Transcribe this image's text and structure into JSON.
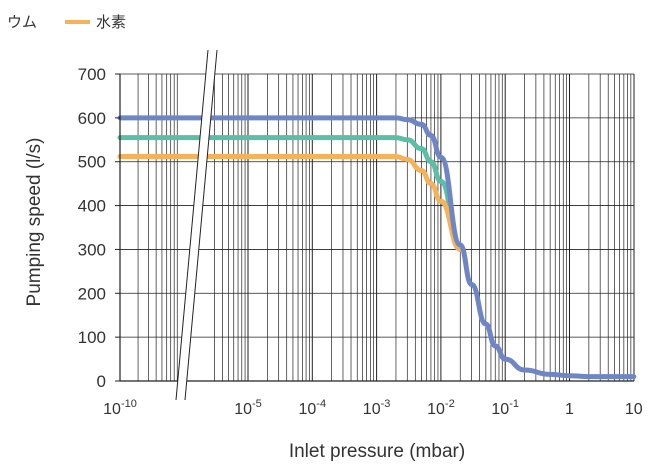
{
  "chart_data": {
    "type": "line",
    "title": "",
    "xlabel": "Inlet pressure (mbar)",
    "ylabel": "Pumping speed (l/s)",
    "x_scale": "log",
    "x_axis_break": true,
    "xlim": [
      1e-10,
      10
    ],
    "ylim": [
      0,
      700
    ],
    "grid": true,
    "legend_position": "top-left",
    "legend": [
      "ウム",
      "水素"
    ],
    "y_ticks": [
      "0",
      "100",
      "200",
      "300",
      "400",
      "500",
      "600",
      "700"
    ],
    "x_ticks": [
      {
        "label": "10",
        "exp": "-10"
      },
      {
        "label": "10",
        "exp": "-5"
      },
      {
        "label": "10",
        "exp": "-4"
      },
      {
        "label": "10",
        "exp": "-3"
      },
      {
        "label": "10",
        "exp": "-2"
      },
      {
        "label": "10",
        "exp": "-1"
      },
      {
        "label": "1",
        "exp": ""
      },
      {
        "label": "10",
        "exp": ""
      }
    ],
    "series": [
      {
        "color": "#6f86c6",
        "x": [
          1e-10,
          1e-05,
          0.0001,
          0.001,
          0.002,
          0.003,
          0.005,
          0.007,
          0.01,
          0.02,
          0.03,
          0.05,
          0.07,
          0.1,
          0.2,
          0.5,
          1,
          2,
          5,
          10
        ],
        "values": [
          600,
          600,
          600,
          600,
          600,
          596,
          585,
          560,
          510,
          310,
          220,
          130,
          80,
          50,
          25,
          15,
          12,
          10,
          10,
          10
        ]
      },
      {
        "color": "#5bbfa5",
        "x": [
          1e-10,
          1e-05,
          0.0001,
          0.001,
          0.002,
          0.003,
          0.005,
          0.007,
          0.01,
          0.02
        ],
        "values": [
          555,
          555,
          555,
          555,
          555,
          550,
          530,
          500,
          455,
          300
        ]
      },
      {
        "name": "水素",
        "color": "#f5b25a",
        "x": [
          1e-10,
          1e-05,
          0.0001,
          0.001,
          0.002,
          0.003,
          0.005,
          0.007,
          0.01,
          0.02
        ],
        "values": [
          512,
          512,
          512,
          512,
          512,
          505,
          480,
          450,
          410,
          300
        ]
      }
    ]
  }
}
